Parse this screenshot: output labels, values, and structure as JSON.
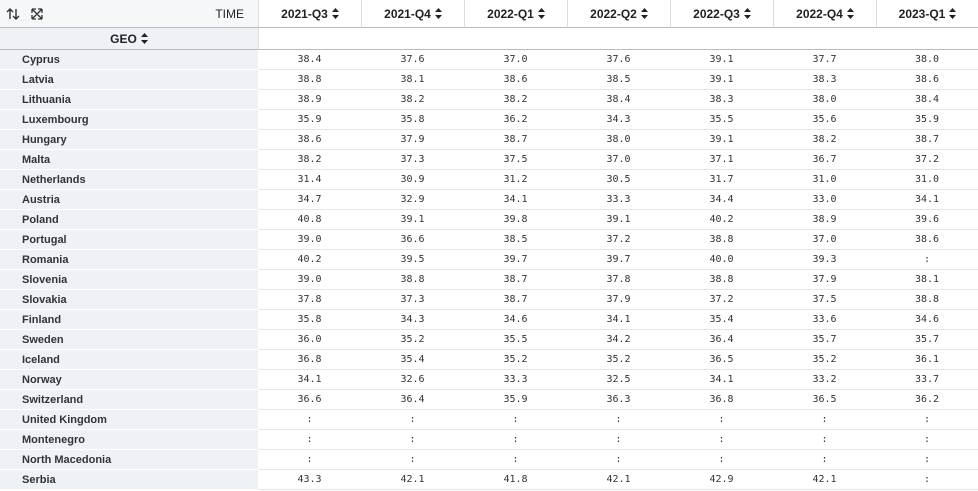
{
  "header": {
    "time_label": "TIME",
    "geo_label": "GEO",
    "columns": [
      "2021-Q3",
      "2021-Q4",
      "2022-Q1",
      "2022-Q2",
      "2022-Q3",
      "2022-Q4",
      "2023-Q1"
    ]
  },
  "table": {
    "rows": [
      {
        "label": "Cyprus",
        "values": [
          "38.4",
          "37.6",
          "37.0",
          "37.6",
          "39.1",
          "37.7",
          "38.0"
        ]
      },
      {
        "label": "Latvia",
        "values": [
          "38.8",
          "38.1",
          "38.6",
          "38.5",
          "39.1",
          "38.3",
          "38.6"
        ]
      },
      {
        "label": "Lithuania",
        "values": [
          "38.9",
          "38.2",
          "38.2",
          "38.4",
          "38.3",
          "38.0",
          "38.4"
        ]
      },
      {
        "label": "Luxembourg",
        "values": [
          "35.9",
          "35.8",
          "36.2",
          "34.3",
          "35.5",
          "35.6",
          "35.9"
        ]
      },
      {
        "label": "Hungary",
        "values": [
          "38.6",
          "37.9",
          "38.7",
          "38.0",
          "39.1",
          "38.2",
          "38.7"
        ]
      },
      {
        "label": "Malta",
        "values": [
          "38.2",
          "37.3",
          "37.5",
          "37.0",
          "37.1",
          "36.7",
          "37.2"
        ]
      },
      {
        "label": "Netherlands",
        "values": [
          "31.4",
          "30.9",
          "31.2",
          "30.5",
          "31.7",
          "31.0",
          "31.0"
        ]
      },
      {
        "label": "Austria",
        "values": [
          "34.7",
          "32.9",
          "34.1",
          "33.3",
          "34.4",
          "33.0",
          "34.1"
        ]
      },
      {
        "label": "Poland",
        "values": [
          "40.8",
          "39.1",
          "39.8",
          "39.1",
          "40.2",
          "38.9",
          "39.6"
        ]
      },
      {
        "label": "Portugal",
        "values": [
          "39.0",
          "36.6",
          "38.5",
          "37.2",
          "38.8",
          "37.0",
          "38.6"
        ]
      },
      {
        "label": "Romania",
        "values": [
          "40.2",
          "39.5",
          "39.7",
          "39.7",
          "40.0",
          "39.3",
          ":"
        ]
      },
      {
        "label": "Slovenia",
        "values": [
          "39.0",
          "38.8",
          "38.7",
          "37.8",
          "38.8",
          "37.9",
          "38.1"
        ]
      },
      {
        "label": "Slovakia",
        "values": [
          "37.8",
          "37.3",
          "38.7",
          "37.9",
          "37.2",
          "37.5",
          "38.8"
        ]
      },
      {
        "label": "Finland",
        "values": [
          "35.8",
          "34.3",
          "34.6",
          "34.1",
          "35.4",
          "33.6",
          "34.6"
        ]
      },
      {
        "label": "Sweden",
        "values": [
          "36.0",
          "35.2",
          "35.5",
          "34.2",
          "36.4",
          "35.7",
          "35.7"
        ]
      },
      {
        "label": "Iceland",
        "values": [
          "36.8",
          "35.4",
          "35.2",
          "35.2",
          "36.5",
          "35.2",
          "36.1"
        ]
      },
      {
        "label": "Norway",
        "values": [
          "34.1",
          "32.6",
          "33.3",
          "32.5",
          "34.1",
          "33.2",
          "33.7"
        ]
      },
      {
        "label": "Switzerland",
        "values": [
          "36.6",
          "36.4",
          "35.9",
          "36.3",
          "36.8",
          "36.5",
          "36.2"
        ]
      },
      {
        "label": "United Kingdom",
        "values": [
          ":",
          ":",
          ":",
          ":",
          ":",
          ":",
          ":"
        ]
      },
      {
        "label": "Montenegro",
        "values": [
          ":",
          ":",
          ":",
          ":",
          ":",
          ":",
          ":"
        ]
      },
      {
        "label": "North Macedonia",
        "values": [
          ":",
          ":",
          ":",
          ":",
          ":",
          ":",
          ":"
        ]
      },
      {
        "label": "Serbia",
        "values": [
          "43.3",
          "42.1",
          "41.8",
          "42.1",
          "42.9",
          "42.1",
          ":"
        ]
      }
    ]
  }
}
